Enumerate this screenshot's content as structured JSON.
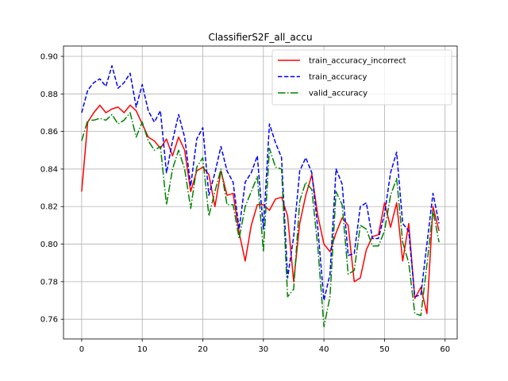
{
  "chart_data": {
    "type": "line",
    "title": "ClassifierS2F_all_accu",
    "xlabel": "",
    "ylabel": "",
    "xlim": [
      -3,
      62
    ],
    "ylim": [
      0.7495,
      0.9055
    ],
    "xticks": [
      0,
      10,
      20,
      30,
      40,
      50,
      60
    ],
    "yticks": [
      0.76,
      0.78,
      0.8,
      0.82,
      0.84,
      0.86,
      0.88,
      0.9
    ],
    "ytick_labels": [
      "0.76",
      "0.78",
      "0.80",
      "0.82",
      "0.84",
      "0.86",
      "0.88",
      "0.90"
    ],
    "grid": true,
    "legend_position": "top-right",
    "x": [
      0,
      1,
      2,
      3,
      4,
      5,
      6,
      7,
      8,
      9,
      10,
      11,
      12,
      13,
      14,
      15,
      16,
      17,
      18,
      19,
      20,
      21,
      22,
      23,
      24,
      25,
      26,
      27,
      28,
      29,
      30,
      31,
      32,
      33,
      34,
      35,
      36,
      37,
      38,
      39,
      40,
      41,
      42,
      43,
      44,
      45,
      46,
      47,
      48,
      49,
      50,
      51,
      52,
      53,
      54,
      55,
      56,
      57,
      58,
      59
    ],
    "series": [
      {
        "name": "train_accuracy_incorrect",
        "color": "#ff0000",
        "style": "solid",
        "values": [
          0.828,
          0.865,
          0.87,
          0.874,
          0.87,
          0.872,
          0.873,
          0.87,
          0.874,
          0.871,
          0.864,
          0.857,
          0.855,
          0.851,
          0.856,
          0.847,
          0.857,
          0.85,
          0.828,
          0.839,
          0.841,
          0.837,
          0.82,
          0.839,
          0.826,
          0.827,
          0.806,
          0.791,
          0.81,
          0.821,
          0.821,
          0.818,
          0.824,
          0.825,
          0.815,
          0.78,
          0.811,
          0.826,
          0.837,
          0.815,
          0.8,
          0.796,
          0.806,
          0.814,
          0.81,
          0.78,
          0.782,
          0.797,
          0.804,
          0.805,
          0.822,
          0.809,
          0.822,
          0.791,
          0.811,
          0.771,
          0.777,
          0.763,
          0.82,
          0.807
        ]
      },
      {
        "name": "train_accuracy",
        "color": "#0000ff",
        "style": "dashed",
        "values": [
          0.87,
          0.882,
          0.886,
          0.888,
          0.884,
          0.895,
          0.883,
          0.886,
          0.891,
          0.873,
          0.885,
          0.871,
          0.865,
          0.871,
          0.838,
          0.855,
          0.869,
          0.857,
          0.831,
          0.856,
          0.862,
          0.826,
          0.838,
          0.852,
          0.839,
          0.833,
          0.808,
          0.833,
          0.838,
          0.847,
          0.808,
          0.864,
          0.854,
          0.846,
          0.782,
          0.804,
          0.839,
          0.846,
          0.838,
          0.808,
          0.77,
          0.784,
          0.84,
          0.832,
          0.794,
          0.795,
          0.82,
          0.822,
          0.803,
          0.803,
          0.816,
          0.838,
          0.849,
          0.811,
          0.807,
          0.772,
          0.773,
          0.8,
          0.827,
          0.811
        ]
      },
      {
        "name": "valid_accuracy",
        "color": "#008000",
        "style": "dashdot",
        "values": [
          0.855,
          0.866,
          0.866,
          0.867,
          0.866,
          0.869,
          0.864,
          0.866,
          0.87,
          0.857,
          0.865,
          0.855,
          0.85,
          0.852,
          0.821,
          0.84,
          0.85,
          0.84,
          0.819,
          0.841,
          0.846,
          0.815,
          0.828,
          0.84,
          0.821,
          0.821,
          0.803,
          0.82,
          0.828,
          0.836,
          0.796,
          0.851,
          0.841,
          0.84,
          0.772,
          0.776,
          0.823,
          0.833,
          0.829,
          0.798,
          0.756,
          0.772,
          0.828,
          0.821,
          0.784,
          0.786,
          0.81,
          0.808,
          0.799,
          0.799,
          0.807,
          0.826,
          0.835,
          0.801,
          0.79,
          0.763,
          0.762,
          0.789,
          0.818,
          0.801
        ]
      }
    ]
  }
}
